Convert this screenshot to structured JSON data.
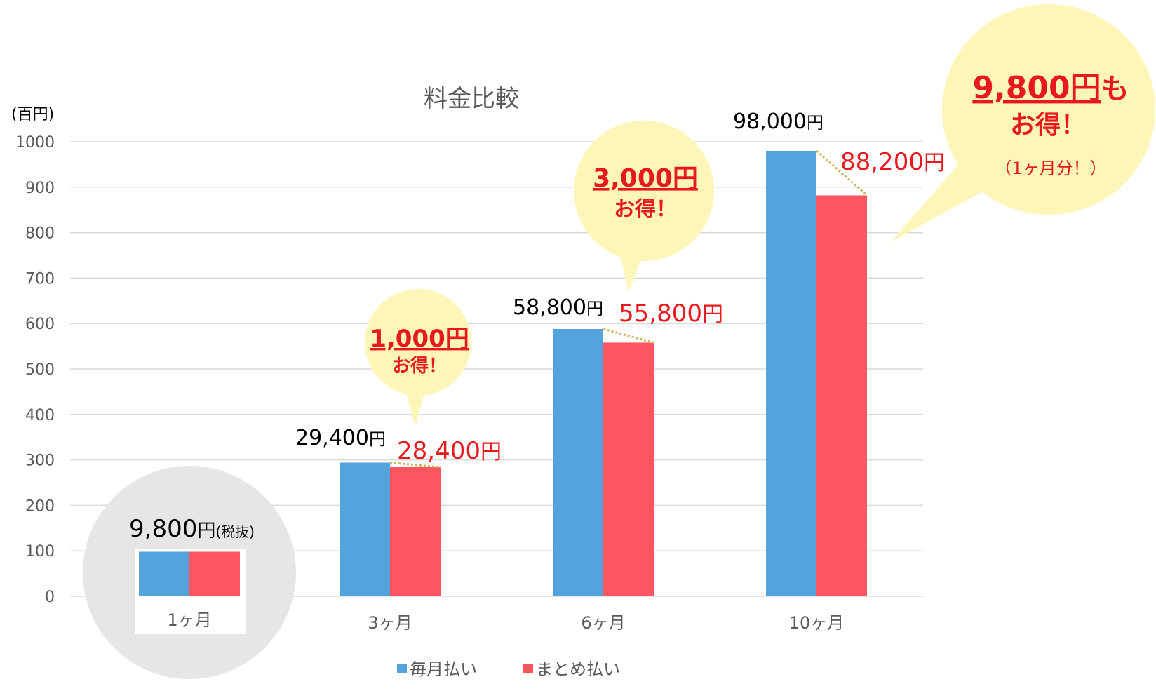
{
  "chart_data": {
    "type": "bar",
    "title": "料金比較",
    "ylabel": "(百円)",
    "ylim": [
      0,
      1000
    ],
    "yticks": [
      0,
      100,
      200,
      300,
      400,
      500,
      600,
      700,
      800,
      900,
      1000
    ],
    "grid": true,
    "legend_position": "bottom",
    "categories": [
      "1ヶ月",
      "3ヶ月",
      "6ヶ月",
      "10ヶ月"
    ],
    "series": [
      {
        "name": "毎月払い",
        "color": "#55a3dc",
        "values": [
          98,
          294,
          588,
          980
        ]
      },
      {
        "name": "まとめ払い",
        "color": "#fd5660",
        "values": [
          98,
          284,
          558,
          882
        ]
      }
    ],
    "data_labels": {
      "single_month": {
        "value": "9,800",
        "unit": "円",
        "note": "(税抜)"
      },
      "monthly": [
        {
          "value": "29,400",
          "unit": "円"
        },
        {
          "value": "58,800",
          "unit": "円"
        },
        {
          "value": "98,000",
          "unit": "円"
        }
      ],
      "bundle": [
        {
          "value": "28,400",
          "unit": "円"
        },
        {
          "value": "55,800",
          "unit": "円"
        },
        {
          "value": "88,200",
          "unit": "円"
        }
      ]
    },
    "callouts": [
      {
        "main": "1,000円",
        "sub": "お得！"
      },
      {
        "main": "3,000円",
        "sub": "お得！"
      },
      {
        "main": "9,800円",
        "main_suffix": "も",
        "sub": "お得！",
        "note": "（1ヶ月分！）"
      }
    ],
    "colors": {
      "highlight": "#e8191c",
      "bubble": "#fef5b9",
      "circle": "#e6e6e6",
      "connector": "#c8b55a"
    }
  }
}
